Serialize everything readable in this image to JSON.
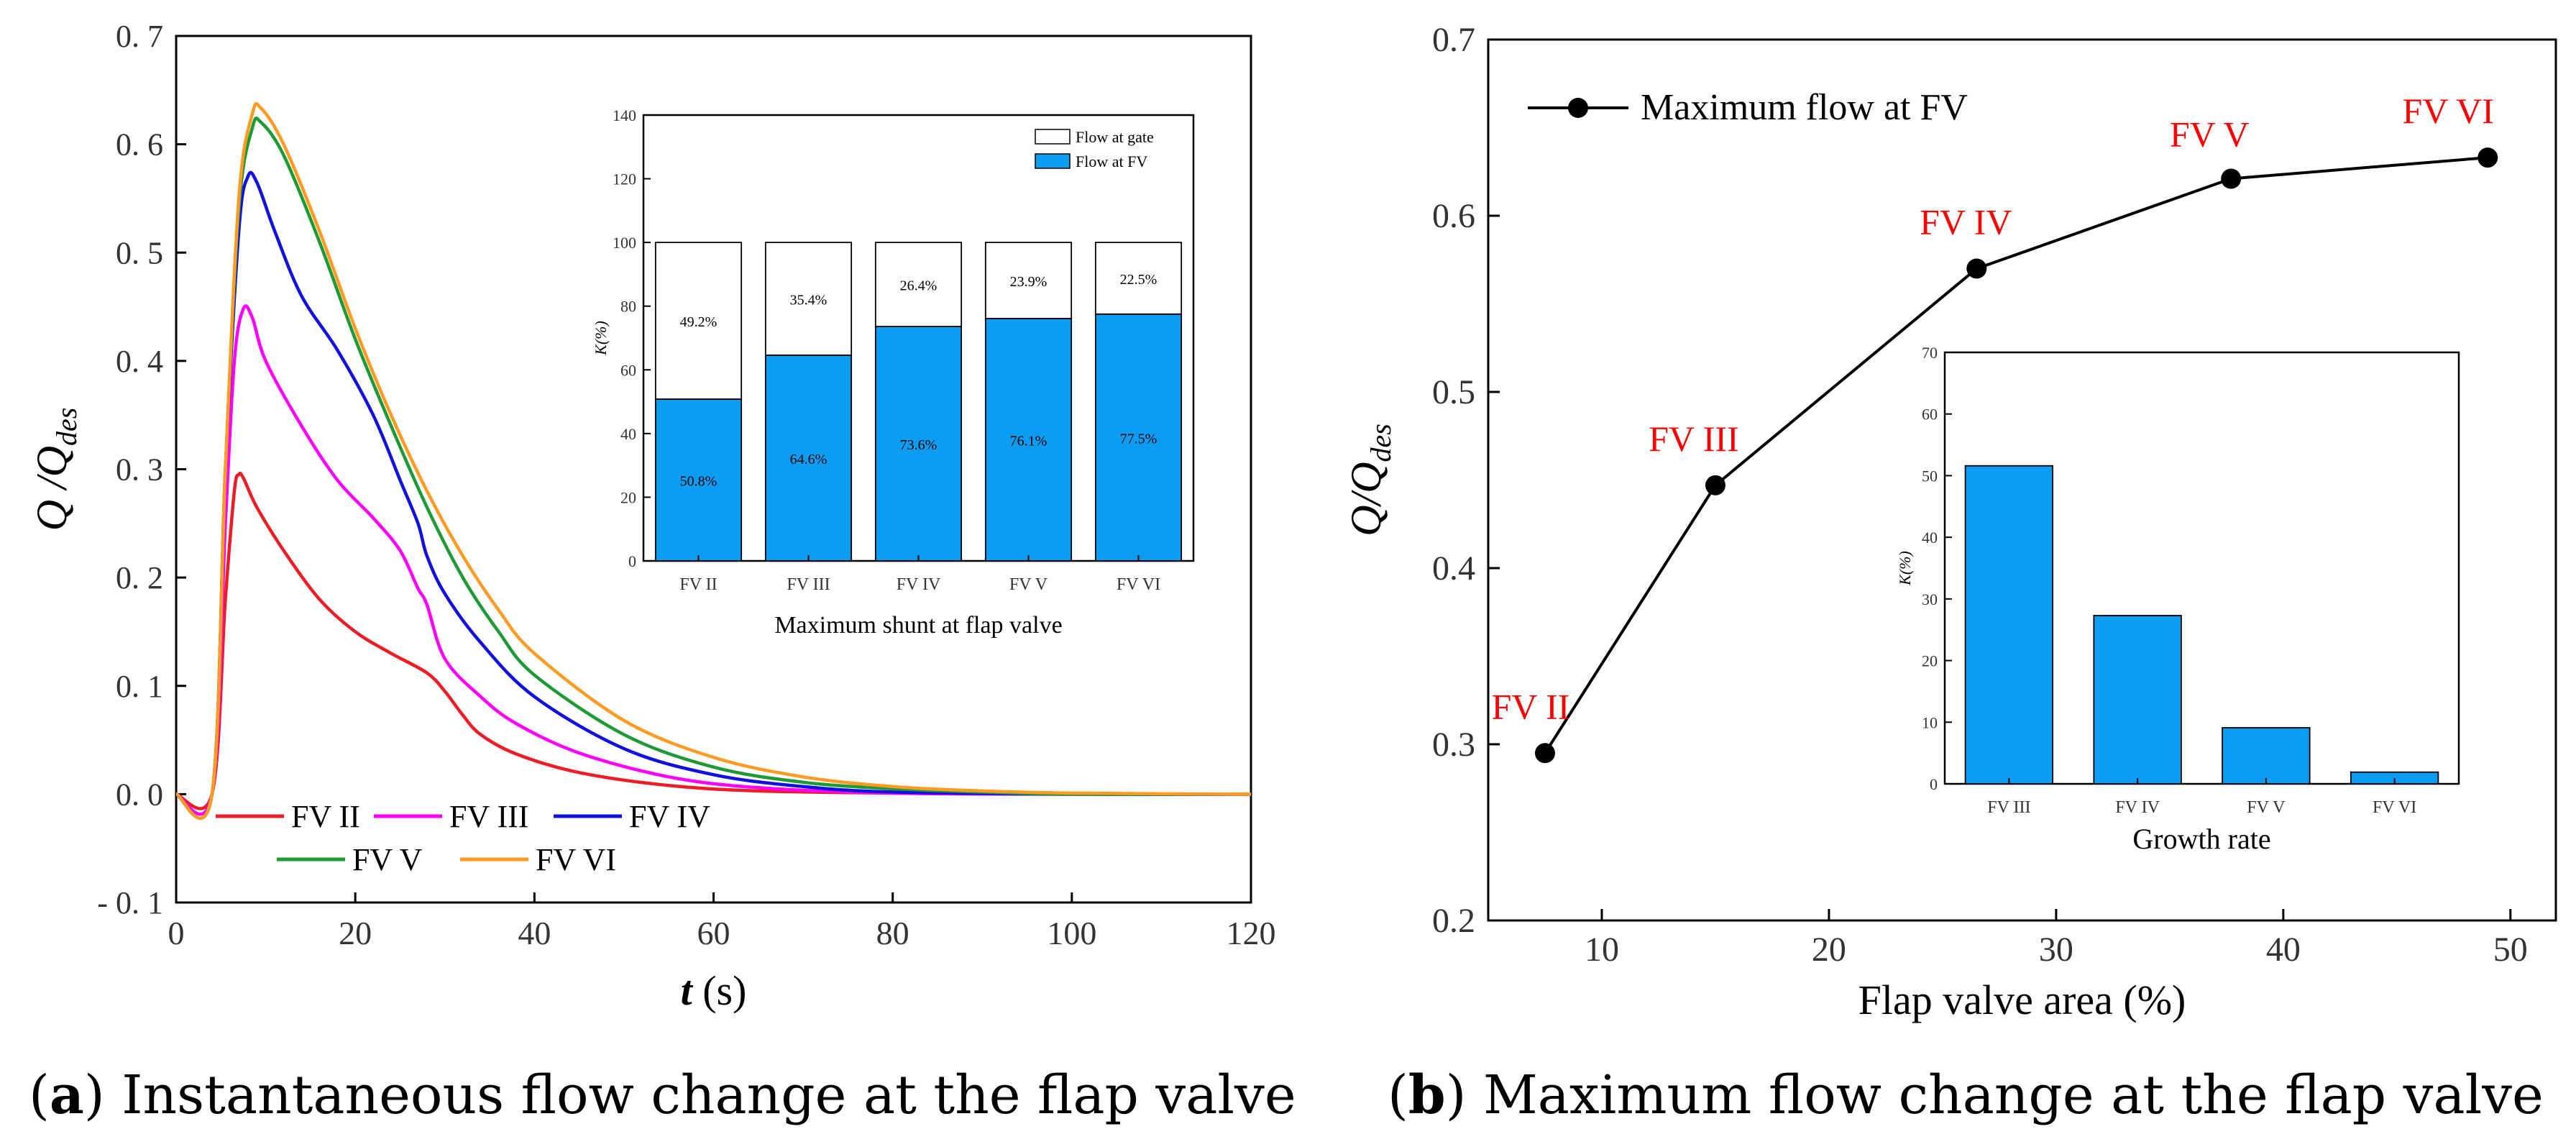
{
  "chart_data": [
    {
      "id": "a",
      "type": "line",
      "xlabel": "t",
      "xlabel_unit": "(s)",
      "ylabel": "Q /Q",
      "ylabel_sub": "des",
      "xlim": [
        0,
        120
      ],
      "ylim": [
        -0.1,
        0.7
      ],
      "x_ticks": [
        0,
        20,
        40,
        60,
        80,
        100,
        120
      ],
      "x_tick_labels": [
        "0",
        "20",
        "40",
        "60",
        "80",
        "100",
        "120"
      ],
      "y_ticks": [
        0.7,
        0.6,
        0.5,
        0.4,
        0.3,
        0.2,
        0.1,
        0.0,
        -0.1
      ],
      "y_tick_labels": [
        "0. 7",
        "0. 6",
        "0. 5",
        "0. 4",
        "0. 3",
        "0. 2",
        "0. 1",
        "0. 0",
        "- 0. 1"
      ],
      "legend_position": "bottom-left",
      "series": [
        {
          "name": "FV II",
          "color": "#ee1c25",
          "x": [
            0,
            4,
            5.5,
            6.5,
            7,
            7.5,
            9,
            12,
            16,
            20,
            24,
            28,
            30,
            32,
            34,
            38,
            45,
            55,
            65,
            80,
            100,
            120
          ],
          "y": [
            0,
            0,
            0.18,
            0.28,
            0.295,
            0.292,
            0.265,
            0.225,
            0.18,
            0.15,
            0.13,
            0.112,
            0.095,
            0.073,
            0.055,
            0.037,
            0.02,
            0.008,
            0.003,
            0.001,
            0,
            0
          ]
        },
        {
          "name": "FV III",
          "color": "#ff00ff",
          "x": [
            0,
            4,
            5.5,
            6.5,
            7.5,
            8.5,
            10,
            14,
            18,
            22,
            25,
            27,
            28,
            30,
            34,
            38,
            45,
            55,
            65,
            80,
            100,
            120
          ],
          "y": [
            0,
            0,
            0.25,
            0.4,
            0.448,
            0.44,
            0.4,
            0.34,
            0.29,
            0.255,
            0.225,
            0.19,
            0.175,
            0.125,
            0.09,
            0.065,
            0.038,
            0.016,
            0.006,
            0.001,
            0,
            0
          ]
        },
        {
          "name": "FV IV",
          "color": "#1010e0",
          "x": [
            0,
            4,
            5.5,
            7,
            8,
            9,
            11,
            14,
            18,
            22,
            25,
            27,
            28,
            30,
            34,
            40,
            50,
            60,
            70,
            80,
            100,
            120
          ],
          "y": [
            0,
            0,
            0.3,
            0.52,
            0.57,
            0.565,
            0.52,
            0.46,
            0.41,
            0.35,
            0.29,
            0.25,
            0.22,
            0.185,
            0.14,
            0.09,
            0.042,
            0.018,
            0.007,
            0.002,
            0,
            0
          ]
        },
        {
          "name": "FV V",
          "color": "#1e9a35",
          "x": [
            0,
            4,
            5.5,
            7,
            8.5,
            9.5,
            12,
            16,
            20,
            24,
            28,
            32,
            36,
            40,
            50,
            60,
            70,
            80,
            90,
            100,
            120
          ],
          "y": [
            0,
            0,
            0.3,
            0.54,
            0.615,
            0.62,
            0.59,
            0.51,
            0.42,
            0.34,
            0.265,
            0.2,
            0.15,
            0.11,
            0.055,
            0.025,
            0.011,
            0.005,
            0.002,
            0.0,
            0
          ]
        },
        {
          "name": "FV VI",
          "color": "#ff9b22",
          "x": [
            0,
            4,
            5.5,
            7,
            8.5,
            9.5,
            12,
            16,
            20,
            24,
            28,
            32,
            36,
            40,
            50,
            60,
            70,
            80,
            90,
            100,
            120
          ],
          "y": [
            0,
            0,
            0.3,
            0.55,
            0.628,
            0.633,
            0.6,
            0.52,
            0.43,
            0.35,
            0.28,
            0.22,
            0.17,
            0.13,
            0.068,
            0.034,
            0.016,
            0.007,
            0.003,
            0.001,
            0
          ]
        }
      ],
      "inset": {
        "type": "bar",
        "stacked": true,
        "categories": [
          "FV II",
          "FV III",
          "FV IV",
          "FV V",
          "FV VI"
        ],
        "ylabel": "K(%)",
        "ylim": [
          0,
          140
        ],
        "y_ticks": [
          0,
          20,
          40,
          60,
          80,
          100,
          120,
          140
        ],
        "xlabel": "Maximum shunt at flap valve",
        "legend_position": "top-right",
        "series": [
          {
            "name": "Flow at FV",
            "color": "#0c9cf2",
            "values": [
              50.8,
              64.6,
              73.6,
              76.1,
              77.5
            ],
            "labels": [
              "50.8%",
              "64.6%",
              "73.6%",
              "76.1%",
              "77.5%"
            ]
          },
          {
            "name": "Flow at gate",
            "color": "#ffffff",
            "values": [
              49.2,
              35.4,
              26.4,
              23.9,
              22.5
            ],
            "labels": [
              "49.2%",
              "35.4%",
              "26.4%",
              "23.9%",
              "22.5%"
            ]
          }
        ]
      }
    },
    {
      "id": "b",
      "type": "line",
      "xlabel": "Flap valve area (%)",
      "ylabel": "Q/Q",
      "ylabel_sub": "des",
      "xlim": [
        5,
        52
      ],
      "ylim": [
        0.2,
        0.7
      ],
      "x_ticks": [
        10,
        20,
        30,
        40,
        50
      ],
      "x_tick_labels": [
        "10",
        "20",
        "30",
        "40",
        "50"
      ],
      "y_ticks": [
        0.2,
        0.3,
        0.4,
        0.5,
        0.6,
        0.7
      ],
      "y_tick_labels": [
        "0.2",
        "0.3",
        "0.4",
        "0.5",
        "0.6",
        "0.7"
      ],
      "legend_position": "top-left",
      "series": [
        {
          "name": "Maximum flow at FV",
          "color": "#000000",
          "x": [
            7.5,
            15,
            26.5,
            37.7,
            49
          ],
          "y": [
            0.295,
            0.447,
            0.57,
            0.621,
            0.633
          ],
          "labels": [
            "FV II",
            "FV III",
            "FV IV",
            "FV V",
            "FV VI"
          ],
          "label_color": "#ff0000"
        }
      ],
      "inset": {
        "type": "bar",
        "categories": [
          "FV III",
          "FV IV",
          "FV V",
          "FV VI"
        ],
        "values": [
          51.6,
          27.3,
          9.1,
          1.9
        ],
        "color": "#0c9cf2",
        "ylabel": "K(%)",
        "ylim": [
          0,
          70
        ],
        "y_ticks": [
          0,
          10,
          20,
          30,
          40,
          50,
          60,
          70
        ],
        "xlabel": "Growth rate"
      }
    }
  ],
  "captions": {
    "a": {
      "letter": "a",
      "text": "Instantaneous flow change at the flap valve"
    },
    "b": {
      "letter": "b",
      "text": "Maximum flow change at the flap valve"
    }
  }
}
